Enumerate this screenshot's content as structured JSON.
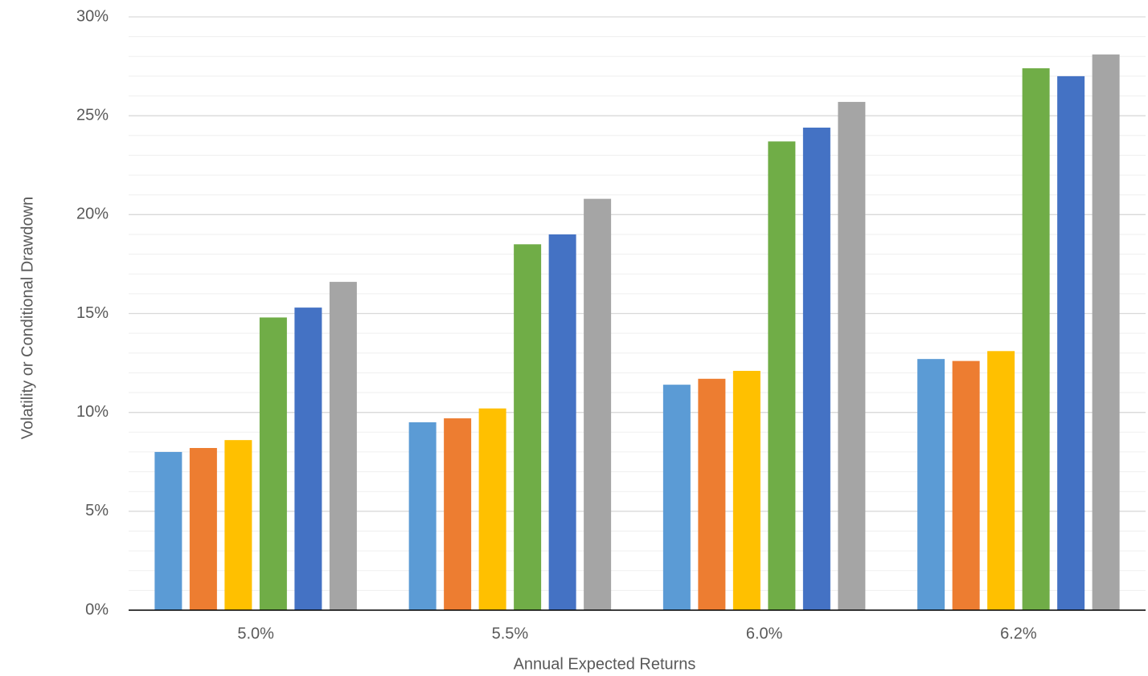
{
  "chart_data": {
    "type": "bar",
    "x_label": "Annual Expected Returns",
    "y_label": "Volatility or Conditional Drawdown",
    "categories": [
      "5.0%",
      "5.5%",
      "6.0%",
      "6.2%"
    ],
    "series": [
      {
        "color": "#5b9bd5",
        "values": [
          8.0,
          9.5,
          11.4,
          12.7
        ]
      },
      {
        "color": "#ed7d31",
        "values": [
          8.2,
          9.7,
          11.7,
          12.6
        ]
      },
      {
        "color": "#ffc000",
        "values": [
          8.6,
          10.2,
          12.1,
          13.1
        ]
      },
      {
        "color": "#70ad47",
        "values": [
          14.8,
          18.5,
          23.7,
          27.4
        ]
      },
      {
        "color": "#4472c4",
        "values": [
          15.3,
          19.0,
          24.4,
          27.0
        ]
      },
      {
        "color": "#a5a5a5",
        "values": [
          16.6,
          20.8,
          25.7,
          28.1
        ]
      }
    ],
    "ylim": [
      0,
      30
    ],
    "yticks": [
      {
        "value": 0,
        "label": "0%"
      },
      {
        "value": 5,
        "label": "5%"
      },
      {
        "value": 10,
        "label": "10%"
      },
      {
        "value": 15,
        "label": "15%"
      },
      {
        "value": 20,
        "label": "20%"
      },
      {
        "value": 25,
        "label": "25%"
      },
      {
        "value": 30,
        "label": "30%"
      }
    ],
    "grid": true,
    "minor_grid": true
  }
}
